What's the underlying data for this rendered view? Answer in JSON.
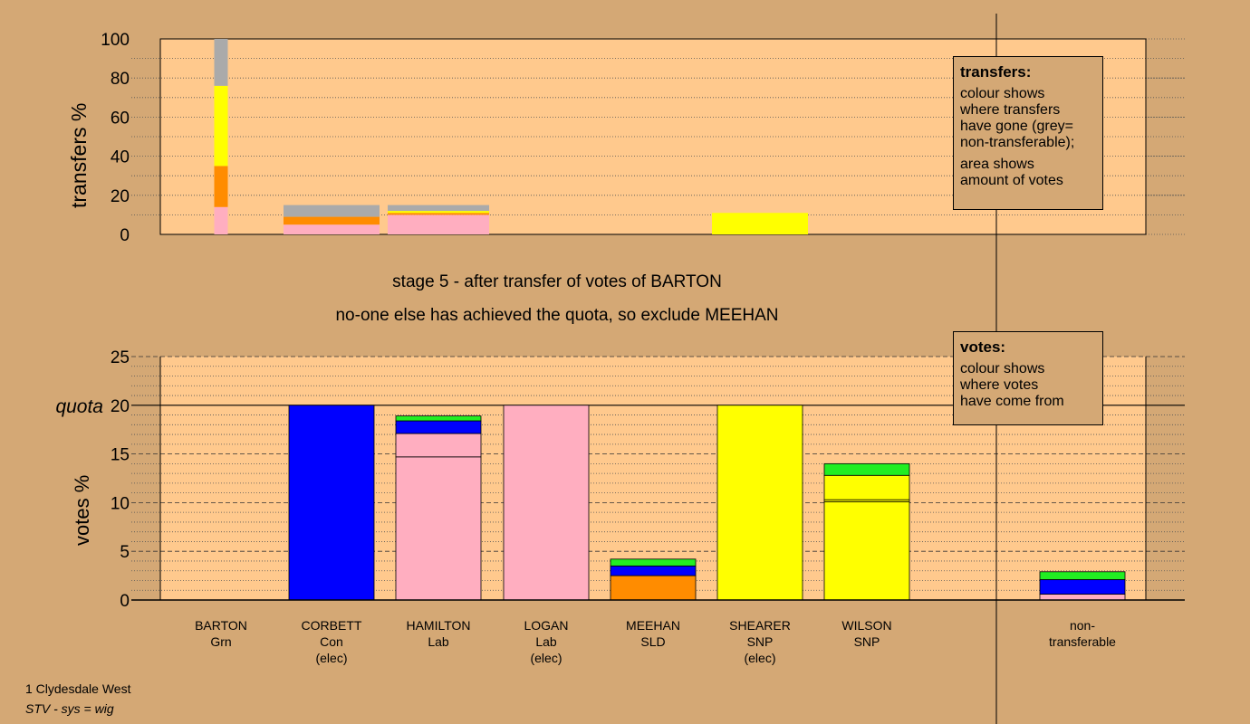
{
  "stage": {
    "line1": "stage 5 - after transfer of votes of BARTON",
    "line2": "no-one else has achieved the quota, so exclude MEEHAN"
  },
  "legend_transfers": {
    "title": "transfers:",
    "lines1": [
      "colour shows",
      "where transfers",
      "have gone (grey=",
      "non-transferable);"
    ],
    "lines2": [
      "area shows",
      "amount of votes"
    ]
  },
  "legend_votes": {
    "title": "votes:",
    "lines": [
      "colour shows",
      "where votes",
      "have come from"
    ]
  },
  "footer": {
    "line1": "1 Clydesdale West",
    "line2": "STV - sys = wig"
  },
  "colors": {
    "background": "#d4a875",
    "plot": "#ffc98d",
    "Lab": "#ffaec0",
    "SLD": "#ff8c00",
    "SNP": "#ffff00",
    "Grn": "#22ee22",
    "Con": "#0000ff",
    "nontransferable": "#aaaaaa"
  },
  "chart_data": [
    {
      "type": "bar",
      "subtype": "stacked",
      "ylabel": "transfers %",
      "ylim": [
        0,
        100
      ],
      "yticks": [
        0,
        20,
        40,
        60,
        80,
        100
      ],
      "bars": [
        {
          "position": "BARTON",
          "width": "narrow",
          "segments": [
            {
              "party": "Lab",
              "value": 14
            },
            {
              "party": "SLD",
              "value": 21
            },
            {
              "party": "SNP",
              "value": 41
            },
            {
              "party": "nontransferable",
              "value": 24
            }
          ]
        },
        {
          "position": "CORBETT",
          "width": "wide",
          "segments": [
            {
              "party": "Lab",
              "value": 5
            },
            {
              "party": "SLD",
              "value": 4
            },
            {
              "party": "nontransferable",
              "value": 6
            }
          ]
        },
        {
          "position": "HAMILTON",
          "width": "wide",
          "segments": [
            {
              "party": "Lab",
              "value": 10
            },
            {
              "party": "SLD",
              "value": 1
            },
            {
              "party": "SNP",
              "value": 1
            },
            {
              "party": "nontransferable",
              "value": 3
            }
          ]
        },
        {
          "position": "SHEARER",
          "width": "wide",
          "segments": [
            {
              "party": "SNP",
              "value": 11
            }
          ]
        }
      ]
    },
    {
      "type": "bar",
      "subtype": "stacked",
      "ylabel": "votes %",
      "quota_label": "quota",
      "quota": 20,
      "ylim": [
        0,
        25
      ],
      "yticks": [
        0,
        5,
        10,
        15,
        20,
        25
      ],
      "candidates": [
        {
          "name": "BARTON",
          "party": "Grn",
          "note": "",
          "segments": []
        },
        {
          "name": "CORBETT",
          "party": "Con",
          "note": "(elec)",
          "segments": [
            {
              "party": "Con",
              "value": 20
            }
          ]
        },
        {
          "name": "HAMILTON",
          "party": "Lab",
          "note": "",
          "segments": [
            {
              "party": "Lab",
              "value": 14.7
            },
            {
              "party": "Lab",
              "value": 2.4
            },
            {
              "party": "Con",
              "value": 1.3
            },
            {
              "party": "Grn",
              "value": 0.5
            }
          ]
        },
        {
          "name": "LOGAN",
          "party": "Lab",
          "note": "(elec)",
          "segments": [
            {
              "party": "Lab",
              "value": 20
            }
          ]
        },
        {
          "name": "MEEHAN",
          "party": "SLD",
          "note": "",
          "segments": [
            {
              "party": "SLD",
              "value": 2.5
            },
            {
              "party": "Con",
              "value": 1.0
            },
            {
              "party": "Grn",
              "value": 0.7
            }
          ]
        },
        {
          "name": "SHEARER",
          "party": "SNP",
          "note": "(elec)",
          "segments": [
            {
              "party": "SNP",
              "value": 20
            }
          ]
        },
        {
          "name": "WILSON",
          "party": "SNP",
          "note": "",
          "segments": [
            {
              "party": "SNP",
              "value": 10.1
            },
            {
              "party": "SNP",
              "value": 0.2
            },
            {
              "party": "SNP",
              "value": 2.5
            },
            {
              "party": "Grn",
              "value": 1.2
            }
          ]
        },
        {
          "name": "non-\ntransferable",
          "party": "",
          "note": "",
          "segments": [
            {
              "party": "Lab",
              "value": 0.6
            },
            {
              "party": "Con",
              "value": 1.5
            },
            {
              "party": "Grn",
              "value": 0.8
            }
          ]
        }
      ]
    }
  ]
}
